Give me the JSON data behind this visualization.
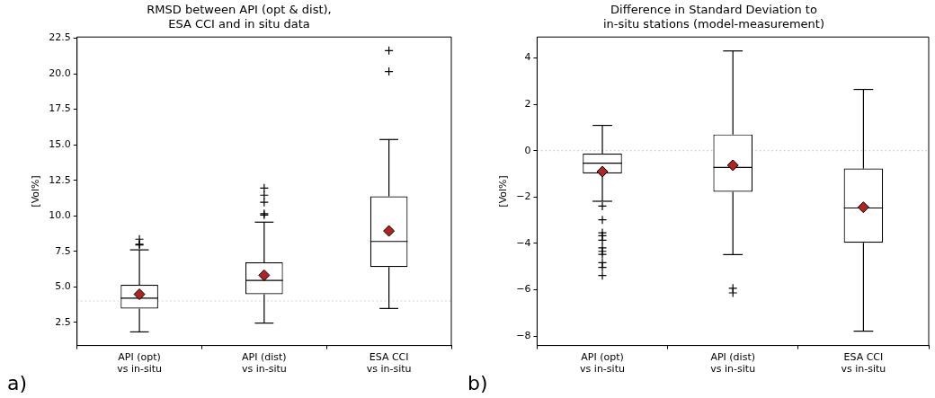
{
  "chart_data": [
    {
      "type": "box",
      "title": "RMSD between API (opt & dist),\nESA CCI and in situ data",
      "ylabel": "[Vol%]",
      "categories": [
        "API (opt)\nvs in-situ",
        "API (dist)\nvs in-situ",
        "ESA CCI\nvs in-situ"
      ],
      "series": [
        {
          "color": "#000000",
          "boxes": [
            {
              "low": 1.82,
              "q1": 3.46,
              "median": 4.2,
              "q3": 5.13,
              "high": 7.6,
              "outliers": [
                7.95,
                8.0,
                8.35
              ]
            },
            {
              "low": 2.44,
              "q1": 4.47,
              "median": 5.45,
              "q3": 6.72,
              "high": 9.55,
              "outliers": [
                10.05,
                10.15,
                10.95,
                11.45,
                11.95
              ]
            },
            {
              "low": 3.47,
              "q1": 6.39,
              "median": 8.19,
              "q3": 11.37,
              "high": 15.37,
              "outliers": [
                20.16,
                21.63
              ]
            }
          ]
        },
        {
          "type": "scatter",
          "color": "#b22222",
          "x": [
            "API (opt)\nvs in-situ",
            "API (dist)\nvs in-situ",
            "ESA CCI\nvs in-situ"
          ],
          "values": [
            4.47,
            5.81,
            8.93
          ]
        }
      ],
      "ylim": [
        0.86,
        22.59
      ],
      "yticks": [
        {
          "value": 2.5,
          "label": "2.5"
        },
        {
          "value": 5,
          "label": "5.0"
        },
        {
          "value": 7.5,
          "label": "7.5"
        },
        {
          "value": 10,
          "label": "10.0"
        },
        {
          "value": 12.5,
          "label": "12.5"
        },
        {
          "value": 15,
          "label": "15.0"
        },
        {
          "value": 17.5,
          "label": "17.5"
        },
        {
          "value": 20,
          "label": "20.0"
        },
        {
          "value": 22.5,
          "label": "22.5"
        }
      ],
      "ref_lines": [
        {
          "axis": "y",
          "value": 4,
          "color": "#cccccc",
          "line_style": "dotted"
        }
      ],
      "marker": "diamond",
      "grid": false,
      "legend": false,
      "annotations": [
        "a)"
      ]
    },
    {
      "type": "box",
      "title": "Difference in Standard Deviation to\nin-situ stations (model-measurement)",
      "ylabel": "[Vol%]",
      "categories": [
        "API (opt)\nvs in-situ",
        "API (dist)\nvs in-situ",
        "ESA CCI\nvs in-situ"
      ],
      "series": [
        {
          "color": "#000000",
          "boxes": [
            {
              "low": -2.18,
              "q1": -0.98,
              "median": -0.54,
              "q3": -0.13,
              "high": 1.09,
              "outliers": [
                -2.39,
                -2.98,
                -3.54,
                -3.67,
                -3.86,
                -4.19,
                -4.34,
                -4.47,
                -4.83,
                -5.03,
                -5.38
              ]
            },
            {
              "low": -4.48,
              "q1": -1.77,
              "median": -0.72,
              "q3": 0.7,
              "high": 4.3,
              "outliers": [
                -5.93,
                -6.13
              ]
            },
            {
              "low": -7.78,
              "q1": -3.97,
              "median": -2.47,
              "q3": -0.77,
              "high": 2.64
            }
          ]
        },
        {
          "type": "scatter",
          "color": "#b22222",
          "x": [
            "API (opt)\nvs in-situ",
            "API (dist)\nvs in-situ",
            "ESA CCI\nvs in-situ"
          ],
          "values": [
            -0.9,
            -0.63,
            -2.44
          ]
        }
      ],
      "ylim": [
        -8.4,
        4.9
      ],
      "yticks": [
        {
          "value": -8,
          "label": "−8"
        },
        {
          "value": -6,
          "label": "−6"
        },
        {
          "value": -4,
          "label": "−4"
        },
        {
          "value": -2,
          "label": "−2"
        },
        0,
        2,
        4
      ],
      "ref_lines": [
        {
          "axis": "y",
          "value": 0,
          "color": "#cccccc",
          "line_style": "dotted"
        }
      ],
      "marker": "diamond",
      "grid": false,
      "legend": false,
      "annotations": [
        "b)"
      ]
    }
  ]
}
